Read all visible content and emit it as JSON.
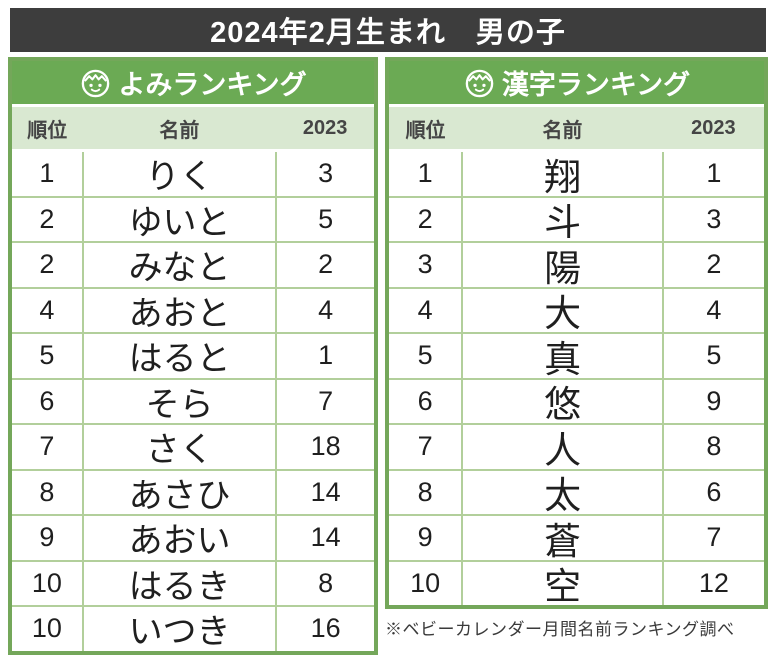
{
  "header": {
    "title": "2024年2月生まれ　男の子"
  },
  "chart_data": [
    {
      "type": "table",
      "title": "よみランキング",
      "icon": "baby-face-icon",
      "columns": [
        "順位",
        "名前",
        "2023"
      ],
      "rows": [
        [
          "1",
          "りく",
          "3"
        ],
        [
          "2",
          "ゆいと",
          "5"
        ],
        [
          "2",
          "みなと",
          "2"
        ],
        [
          "4",
          "あおと",
          "4"
        ],
        [
          "5",
          "はると",
          "1"
        ],
        [
          "6",
          "そら",
          "7"
        ],
        [
          "7",
          "さく",
          "18"
        ],
        [
          "8",
          "あさひ",
          "14"
        ],
        [
          "9",
          "あおい",
          "14"
        ],
        [
          "10",
          "はるき",
          "8"
        ],
        [
          "10",
          "いつき",
          "16"
        ]
      ]
    },
    {
      "type": "table",
      "title": "漢字ランキング",
      "icon": "baby-face-icon",
      "columns": [
        "順位",
        "名前",
        "2023"
      ],
      "rows": [
        [
          "1",
          "翔",
          "1"
        ],
        [
          "2",
          "斗",
          "3"
        ],
        [
          "3",
          "陽",
          "2"
        ],
        [
          "4",
          "大",
          "4"
        ],
        [
          "5",
          "真",
          "5"
        ],
        [
          "6",
          "悠",
          "9"
        ],
        [
          "7",
          "人",
          "8"
        ],
        [
          "8",
          "太",
          "6"
        ],
        [
          "9",
          "蒼",
          "7"
        ],
        [
          "10",
          "空",
          "12"
        ]
      ]
    }
  ],
  "footnote": "※ベビーカレンダー月間名前ランキング調べ",
  "colors": {
    "banner_bg": "#3d3d3d",
    "title_green": "#6baa54",
    "header_light_green": "#d9e8d1",
    "outer_border_green": "#74a75a",
    "cell_border_green": "#b2cf9b",
    "body_text": "#1f1f1f",
    "header_text": "#454545",
    "title_text": "#ffffff"
  }
}
